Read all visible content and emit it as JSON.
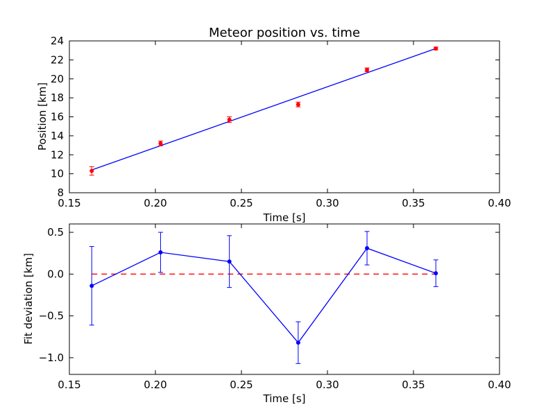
{
  "chart_data": [
    {
      "type": "scatter",
      "title": "Meteor position vs. time",
      "xlabel": "Time [s]",
      "ylabel": "Position [km]",
      "xlim": [
        0.15,
        0.4
      ],
      "ylim": [
        8,
        24
      ],
      "xticks": [
        "0.15",
        "0.20",
        "0.25",
        "0.30",
        "0.35",
        "0.40"
      ],
      "yticks": [
        "8",
        "10",
        "12",
        "14",
        "16",
        "18",
        "20",
        "22",
        "24"
      ],
      "grid": false,
      "series": [
        {
          "kind": "errorbar-points",
          "color": "#ff0000",
          "x": [
            0.163,
            0.203,
            0.243,
            0.283,
            0.323,
            0.363
          ],
          "y": [
            10.3,
            13.2,
            15.7,
            17.3,
            20.95,
            23.2
          ],
          "yerr": [
            0.45,
            0.25,
            0.3,
            0.25,
            0.2,
            0.15
          ]
        },
        {
          "kind": "fit-line",
          "color": "#0000ff",
          "x": [
            0.163,
            0.363
          ],
          "y": [
            10.4,
            23.2
          ]
        }
      ]
    },
    {
      "type": "line",
      "title": "",
      "xlabel": "Time [s]",
      "ylabel": "Fit deviation [km]",
      "xlim": [
        0.15,
        0.4
      ],
      "ylim": [
        -1.2,
        0.6
      ],
      "xticks": [
        "0.15",
        "0.20",
        "0.25",
        "0.30",
        "0.35",
        "0.40"
      ],
      "yticks": [
        "−1.0",
        "−0.5",
        "0.0",
        "0.5"
      ],
      "ytick_values": [
        -1.0,
        -0.5,
        0.0,
        0.5
      ],
      "grid": false,
      "series": [
        {
          "kind": "line-errorbar",
          "color": "#0000ff",
          "x": [
            0.163,
            0.203,
            0.243,
            0.283,
            0.323,
            0.363
          ],
          "y": [
            -0.14,
            0.26,
            0.15,
            -0.82,
            0.31,
            0.01
          ],
          "yerr": [
            0.47,
            0.24,
            0.31,
            0.25,
            0.2,
            0.16
          ]
        },
        {
          "kind": "reference-line",
          "color": "#ff0000",
          "style": "dashed",
          "x": [
            0.163,
            0.363
          ],
          "y": [
            0.0,
            0.0
          ]
        }
      ]
    }
  ]
}
